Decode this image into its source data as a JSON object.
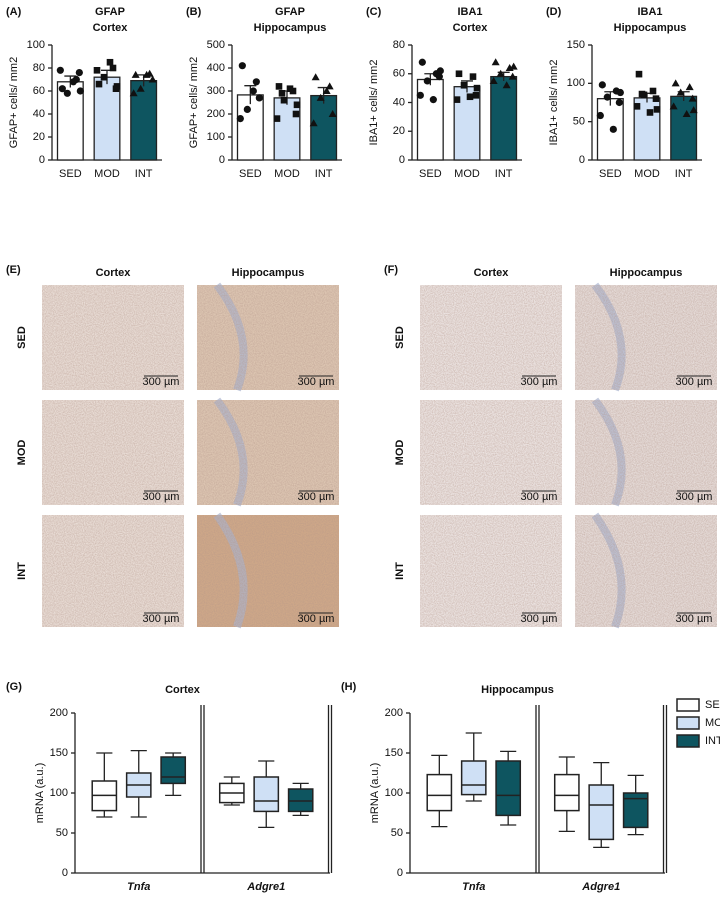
{
  "chart_data": [
    {
      "type": "bar",
      "panel": "(A)",
      "title": "GFAP",
      "subtitle": "Cortex",
      "ylabel": "GFAP+ cells/ mm2",
      "categories": [
        "SED",
        "MOD",
        "INT"
      ],
      "values": [
        68,
        72,
        69
      ],
      "errors": [
        5,
        6,
        5
      ],
      "points": [
        [
          62,
          70,
          58,
          76,
          78,
          68,
          60
        ],
        [
          66,
          80,
          72,
          62,
          78,
          85,
          64
        ],
        [
          74,
          75,
          62,
          70,
          58,
          74
        ]
      ],
      "colors": [
        "#ffffff",
        "#cfe0f5",
        "#0e5560"
      ],
      "ylim": [
        0,
        100
      ],
      "yticks": [
        0,
        20,
        40,
        60,
        80,
        100
      ]
    },
    {
      "type": "bar",
      "panel": "(B)",
      "title": "GFAP",
      "subtitle": "Hippocampus",
      "ylabel": "GFAP+ cells/ mm2",
      "categories": [
        "SED",
        "MOD",
        "INT"
      ],
      "values": [
        283,
        270,
        280
      ],
      "errors": [
        40,
        30,
        35
      ],
      "points": [
        [
          410,
          340,
          220,
          270,
          180,
          300
        ],
        [
          320,
          300,
          260,
          200,
          180,
          310,
          240,
          290
        ],
        [
          360,
          320,
          270,
          200,
          160,
          300
        ]
      ],
      "colors": [
        "#ffffff",
        "#cfe0f5",
        "#0e5560"
      ],
      "ylim": [
        0,
        500
      ],
      "yticks": [
        0,
        100,
        200,
        300,
        400,
        500
      ]
    },
    {
      "type": "bar",
      "panel": "(C)",
      "title": "IBA1",
      "subtitle": "Cortex",
      "ylabel": "IBA1+ cells/ mm2",
      "categories": [
        "SED",
        "MOD",
        "INT"
      ],
      "values": [
        56,
        51,
        58
      ],
      "errors": [
        4,
        4,
        3
      ],
      "points": [
        [
          68,
          60,
          55,
          58,
          45,
          42,
          62
        ],
        [
          60,
          58,
          52,
          45,
          42,
          44,
          50
        ],
        [
          68,
          64,
          60,
          58,
          55,
          52,
          65
        ]
      ],
      "colors": [
        "#ffffff",
        "#cfe0f5",
        "#0e5560"
      ],
      "ylim": [
        0,
        80
      ],
      "yticks": [
        0,
        20,
        40,
        60,
        80
      ]
    },
    {
      "type": "bar",
      "panel": "(D)",
      "title": "IBA1",
      "subtitle": "Hippocampus",
      "ylabel": "IBA1+ cells/ mm2",
      "categories": [
        "SED",
        "MOD",
        "INT"
      ],
      "values": [
        80,
        81,
        83
      ],
      "errors": [
        9,
        6,
        6
      ],
      "points": [
        [
          98,
          90,
          82,
          75,
          58,
          40,
          88
        ],
        [
          112,
          90,
          85,
          80,
          70,
          62,
          66,
          86
        ],
        [
          100,
          95,
          88,
          80,
          70,
          60,
          65
        ]
      ],
      "colors": [
        "#ffffff",
        "#cfe0f5",
        "#0e5560"
      ],
      "ylim": [
        0,
        150
      ],
      "yticks": [
        0,
        50,
        100,
        150
      ]
    },
    {
      "type": "box",
      "panel": "(G)",
      "title": "Cortex",
      "ylabel": "mRNA (a.u.)",
      "categories": [
        "Tnfa",
        "Adgre1"
      ],
      "series": [
        {
          "name": "SED",
          "color": "#ffffff",
          "values": [
            [
              70,
              78,
              97,
              115,
              150
            ],
            [
              85,
              88,
              100,
              112,
              120
            ]
          ]
        },
        {
          "name": "MOD",
          "color": "#cfe0f5",
          "values": [
            [
              70,
              95,
              110,
              125,
              153
            ],
            [
              57,
              77,
              90,
              120,
              140
            ]
          ]
        },
        {
          "name": "INT",
          "color": "#0e5560",
          "values": [
            [
              97,
              112,
              120,
              145,
              150
            ],
            [
              72,
              77,
              90,
              105,
              112
            ]
          ]
        }
      ],
      "ylim": [
        0,
        200
      ],
      "yticks": [
        0,
        50,
        100,
        150,
        200
      ]
    },
    {
      "type": "box",
      "panel": "(H)",
      "title": "Hippocampus",
      "ylabel": "mRNA (a.u.)",
      "categories": [
        "Tnfa",
        "Adgre1"
      ],
      "series": [
        {
          "name": "SED",
          "color": "#ffffff",
          "values": [
            [
              58,
              78,
              97,
              123,
              147
            ],
            [
              52,
              78,
              97,
              123,
              145
            ]
          ]
        },
        {
          "name": "MOD",
          "color": "#cfe0f5",
          "values": [
            [
              90,
              98,
              110,
              140,
              175
            ],
            [
              32,
              42,
              85,
              110,
              138
            ]
          ]
        },
        {
          "name": "INT",
          "color": "#0e5560",
          "values": [
            [
              60,
              72,
              97,
              140,
              152
            ],
            [
              48,
              57,
              93,
              100,
              122
            ]
          ]
        }
      ],
      "ylim": [
        0,
        200
      ],
      "yticks": [
        0,
        50,
        100,
        150,
        200
      ],
      "legend": "right"
    }
  ],
  "micrographs": [
    {
      "panel": "(E)",
      "columns": [
        "Cortex",
        "Hippocampus"
      ],
      "rows": [
        "SED",
        "MOD",
        "INT"
      ],
      "scale_bar": "300 µm"
    },
    {
      "panel": "(F)",
      "columns": [
        "Cortex",
        "Hippocampus"
      ],
      "rows": [
        "SED",
        "MOD",
        "INT"
      ],
      "scale_bar": "300 µm"
    }
  ]
}
